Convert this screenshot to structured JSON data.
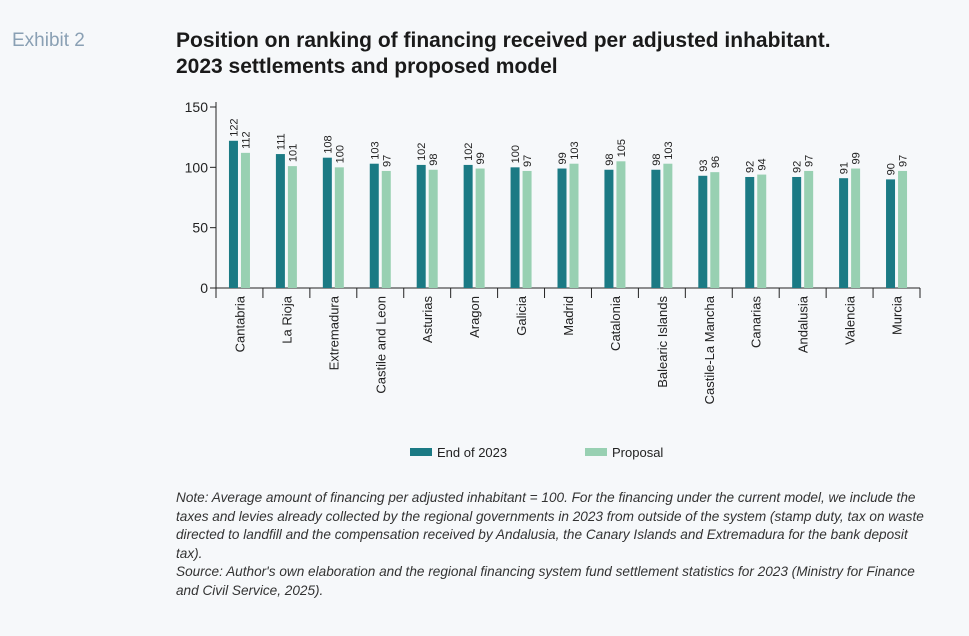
{
  "exhibit_label": "Exhibit 2",
  "title": "Position on ranking of financing received per adjusted inhabitant. 2023 settlements and proposed model",
  "note": "Note: Average amount of financing per adjusted inhabitant = 100. For the financing under the current model, we include the taxes and levies already collected by the regional governments in 2023 from outside of the system (stamp duty, tax on waste directed to landfill and the compensation received by Andalusia, the Canary Islands and Extremadura for the bank deposit tax).",
  "source": "Source: Author's own elaboration and the regional financing system fund settlement statistics for 2023 (Ministry for Finance and Civil Service, 2025).",
  "chart_data": {
    "type": "bar",
    "title": "Position on ranking of financing received per adjusted inhabitant. 2023 settlements and proposed model",
    "xlabel": "",
    "ylabel": "",
    "ylim": [
      0,
      150
    ],
    "yticks": [
      0,
      50,
      100,
      150
    ],
    "grid": false,
    "legend_position": "bottom-center",
    "categories": [
      "Cantabria",
      "La Rioja",
      "Extremadura",
      "Castile and Leon",
      "Asturias",
      "Aragon",
      "Galicia",
      "Madrid",
      "Catalonia",
      "Balearic Islands",
      "Castile-La Mancha",
      "Canarias",
      "Andalusia",
      "Valencia",
      "Murcia"
    ],
    "series": [
      {
        "name": "End of 2023",
        "color": "#1b7a84",
        "values": [
          122,
          111,
          108,
          103,
          102,
          102,
          100,
          99,
          98,
          98,
          93,
          92,
          92,
          91,
          90
        ]
      },
      {
        "name": "Proposal",
        "color": "#98d0b2",
        "values": [
          112,
          101,
          100,
          97,
          98,
          99,
          97,
          103,
          105,
          103,
          96,
          94,
          97,
          99,
          97
        ]
      }
    ]
  }
}
